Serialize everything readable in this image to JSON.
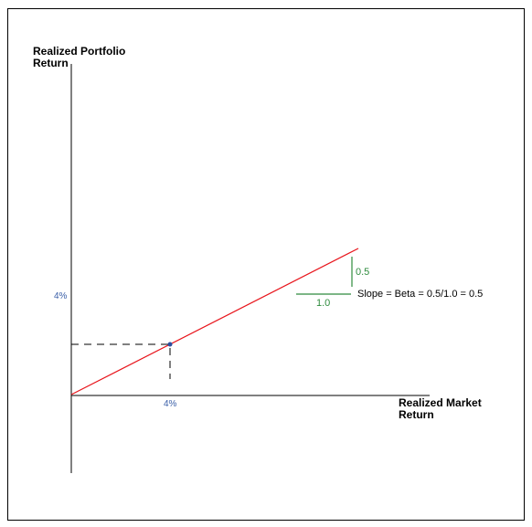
{
  "y_axis_label_line1": "Realized Portfolio",
  "y_axis_label_line2": "Return",
  "x_axis_label_line1": "Realized Market",
  "x_axis_label_line2": "Return",
  "y_tick_label": "4%",
  "x_tick_label": "4%",
  "rise_label": "0.5",
  "run_label": "1.0",
  "slope_text": "Slope = Beta = 0.5/1.0 = 0.5",
  "colors": {
    "line": "#e8141b",
    "axis": "#000000",
    "tick_text": "#3a5fa8",
    "triangle": "#2e8b3d",
    "point": "#2b4ea0"
  }
}
